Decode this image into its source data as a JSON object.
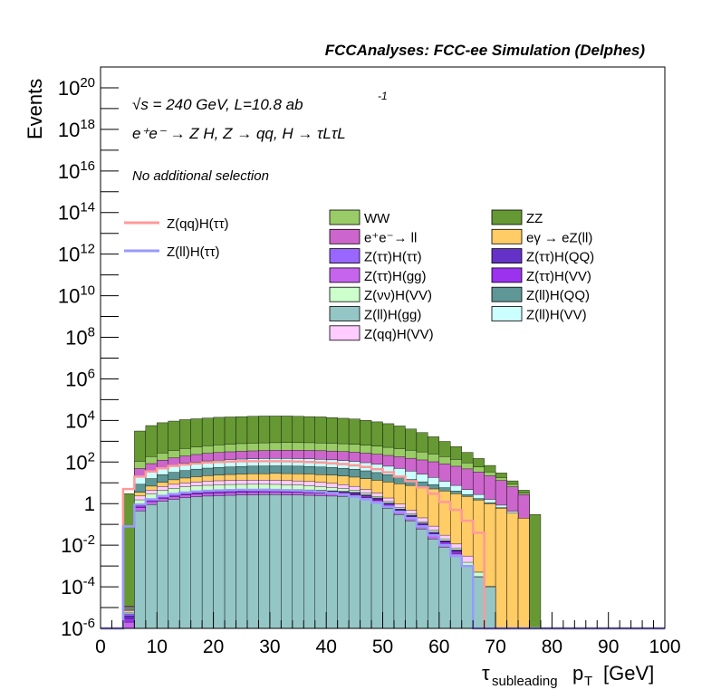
{
  "header": {
    "title": "FCCAnalyses: FCC-ee Simulation (Delphes)"
  },
  "annotations": {
    "energy": "√s = 240 GeV, L=10.8 ab",
    "energy_sup": "-1",
    "process": "e⁺e⁻ → Z H, Z → qq, H → τLτL",
    "selection": "No additional selection"
  },
  "chart_data": {
    "type": "area",
    "title": "FCCAnalyses: FCC-ee Simulation (Delphes)",
    "xlabel": "τsubleading pT [GeV]",
    "ylabel": "Events",
    "xlim": [
      0,
      100
    ],
    "ylim": [
      1e-06,
      1e+21
    ],
    "yscale": "log",
    "grid": false,
    "legend_placement": "top",
    "x_ticks": [
      "0",
      "10",
      "20",
      "30",
      "40",
      "50",
      "60",
      "70",
      "80",
      "90",
      "100"
    ],
    "y_ticks": [
      "10^-6",
      "10^-4",
      "10^-2",
      "1",
      "10^2",
      "10^4",
      "10^6",
      "10^8",
      "10^10",
      "10^12",
      "10^14",
      "10^16",
      "10^18",
      "10^20"
    ],
    "bin_width": 2,
    "stacked_backgrounds": [
      {
        "name": "Z(ll)H(gg)",
        "color": "#95c6c6",
        "values": [
          0,
          0,
          1e-06,
          0.45,
          0.9,
          1.3,
          1.6,
          1.9,
          2.1,
          2.3,
          2.4,
          2.5,
          2.6,
          2.6,
          2.7,
          2.7,
          2.6,
          2.6,
          2.5,
          2.4,
          2.3,
          2.2,
          2.0,
          1.5,
          1.1,
          0.6,
          0.3,
          0.15,
          0.06,
          0.02,
          0.008,
          0.003,
          0.001,
          0.0003,
          0.0001,
          0,
          0,
          0,
          0,
          0,
          0,
          0,
          0,
          0,
          0,
          0,
          0,
          0,
          0,
          0
        ]
      },
      {
        "name": "Z(ττ)H(gg)",
        "color": "#c664ee",
        "values": [
          0,
          0,
          1e-06,
          0.2,
          0.35,
          0.5,
          0.6,
          0.7,
          0.75,
          0.8,
          0.85,
          0.9,
          0.9,
          0.95,
          0.95,
          0.95,
          0.9,
          0.9,
          0.85,
          0.8,
          0.75,
          0.7,
          0.6,
          0.45,
          0.3,
          0.18,
          0.1,
          0.05,
          0.02,
          0.008,
          0.003,
          0.001,
          0,
          0,
          0,
          0,
          0,
          0,
          0,
          0,
          0,
          0,
          0,
          0,
          0,
          0,
          0,
          0,
          0,
          0
        ]
      },
      {
        "name": "Z(ττ)H(VV)",
        "color": "#9a32ee",
        "values": [
          0,
          0,
          1e-06,
          0.15,
          0.25,
          0.35,
          0.45,
          0.5,
          0.55,
          0.6,
          0.6,
          0.65,
          0.65,
          0.7,
          0.7,
          0.7,
          0.65,
          0.65,
          0.6,
          0.6,
          0.55,
          0.5,
          0.45,
          0.35,
          0.25,
          0.15,
          0.08,
          0.04,
          0.02,
          0.008,
          0.003,
          0.001,
          0,
          0,
          0,
          0,
          0,
          0,
          0,
          0,
          0,
          0,
          0,
          0,
          0,
          0,
          0,
          0,
          0,
          0
        ]
      },
      {
        "name": "Z(ττ)H(QQ)",
        "color": "#6532c8",
        "values": [
          0,
          0,
          1e-06,
          0.1,
          0.2,
          0.3,
          0.35,
          0.4,
          0.45,
          0.5,
          0.5,
          0.55,
          0.55,
          0.55,
          0.55,
          0.55,
          0.5,
          0.5,
          0.5,
          0.45,
          0.45,
          0.4,
          0.35,
          0.28,
          0.2,
          0.12,
          0.07,
          0.035,
          0.015,
          0.006,
          0.002,
          0.0008,
          0,
          0,
          0,
          0,
          0,
          0,
          0,
          0,
          0,
          0,
          0,
          0,
          0,
          0,
          0,
          0,
          0,
          0
        ]
      },
      {
        "name": "Z(ττ)H(ττ)",
        "color": "#9966ff",
        "values": [
          0,
          0,
          1e-06,
          0.02,
          0.04,
          0.06,
          0.08,
          0.09,
          0.1,
          0.1,
          0.11,
          0.11,
          0.12,
          0.12,
          0.12,
          0.11,
          0.11,
          0.1,
          0.1,
          0.09,
          0.08,
          0.07,
          0.06,
          0.04,
          0.02,
          0.01,
          0.005,
          0.002,
          0.001,
          0.0005,
          0.0002,
          0.0001,
          0,
          0,
          0,
          0,
          0,
          0,
          0,
          0,
          0,
          0,
          0,
          0,
          0,
          0,
          0,
          0,
          0,
          0
        ]
      },
      {
        "name": "Z(νν)H(VV)",
        "color": "#ccffcc",
        "values": [
          0,
          0,
          1e-06,
          0.6,
          1.2,
          1.8,
          2.4,
          2.8,
          3.1,
          3.3,
          3.5,
          3.6,
          3.6,
          3.6,
          3.5,
          3.4,
          3.2,
          3.0,
          2.7,
          2.3,
          1.9,
          1.4,
          1.0,
          0.6,
          0.35,
          0.2,
          0.1,
          0.05,
          0.02,
          0.01,
          0.004,
          0.0015,
          0.0005,
          0.0002,
          0,
          0,
          0,
          0,
          0,
          0,
          0,
          0,
          0,
          0,
          0,
          0,
          0,
          0,
          0,
          0
        ]
      },
      {
        "name": "Z(qq)H(VV)",
        "color": "#ffccff",
        "values": [
          0,
          0,
          1e-06,
          0.8,
          1.5,
          2.3,
          3.0,
          3.6,
          4.0,
          4.4,
          4.6,
          4.8,
          4.9,
          5.0,
          5.0,
          4.9,
          4.8,
          4.6,
          4.3,
          3.9,
          3.4,
          2.9,
          2.3,
          1.6,
          1.0,
          0.6,
          0.3,
          0.15,
          0.07,
          0.03,
          0.01,
          0.004,
          0.0015,
          0,
          0,
          0,
          0,
          0,
          0,
          0,
          0,
          0,
          0,
          0,
          0,
          0,
          0,
          0,
          0,
          0
        ]
      },
      {
        "name": "eγ → eZ(ll)",
        "color": "#ffcc66",
        "values": [
          0,
          0,
          1e-06,
          1.2,
          2.5,
          4.0,
          5.5,
          7.0,
          8.5,
          10,
          11,
          12,
          13,
          14,
          14,
          15,
          15,
          15,
          15,
          14,
          14,
          13,
          12,
          11,
          10,
          9,
          8,
          7,
          6,
          5,
          4,
          3,
          2.2,
          1.5,
          1.0,
          0.6,
          0.35,
          0.2,
          0,
          0,
          0,
          0,
          0,
          0,
          0,
          0,
          0,
          0,
          0,
          0
        ]
      },
      {
        "name": "Z(ll)H(QQ)",
        "color": "#5f9696",
        "values": [
          0,
          0,
          1e-06,
          5,
          9,
          14,
          18,
          22,
          26,
          29,
          31,
          33,
          35,
          36,
          37,
          37,
          37,
          36,
          35,
          33,
          31,
          29,
          26,
          22,
          18,
          14,
          10,
          7,
          5,
          3,
          1.8,
          1.0,
          0.5,
          0.25,
          0.1,
          0.04,
          0,
          0,
          0,
          0,
          0,
          0,
          0,
          0,
          0,
          0,
          0,
          0,
          0,
          0
        ]
      },
      {
        "name": "Z(ll)H(VV)",
        "color": "#ccffff",
        "values": [
          0,
          0,
          1e-06,
          10,
          18,
          28,
          38,
          47,
          55,
          62,
          68,
          73,
          77,
          80,
          82,
          83,
          83,
          82,
          80,
          77,
          73,
          68,
          62,
          55,
          47,
          38,
          30,
          22,
          15,
          10,
          6,
          3.5,
          2.0,
          1.0,
          0.5,
          0.2,
          0.08,
          0,
          0,
          0,
          0,
          0,
          0,
          0,
          0,
          0,
          0,
          0,
          0,
          0
        ]
      },
      {
        "name": "e⁺e⁻→ ll",
        "color": "#cc66cc",
        "values": [
          0,
          0,
          1e-06,
          30,
          50,
          70,
          90,
          110,
          130,
          150,
          165,
          180,
          190,
          200,
          210,
          215,
          220,
          220,
          220,
          215,
          210,
          200,
          190,
          175,
          160,
          145,
          130,
          115,
          100,
          85,
          70,
          55,
          42,
          30,
          20,
          12,
          6,
          2.5,
          0,
          0,
          0,
          0,
          0,
          0,
          0,
          0,
          0,
          0,
          0,
          0
        ]
      },
      {
        "name": "WW",
        "color": "#99cc66",
        "values": [
          0,
          0,
          1e-06,
          60,
          100,
          150,
          200,
          250,
          300,
          340,
          380,
          410,
          440,
          460,
          480,
          490,
          495,
          495,
          490,
          480,
          460,
          440,
          410,
          380,
          340,
          300,
          260,
          220,
          180,
          140,
          100,
          70,
          45,
          25,
          12,
          5,
          2,
          0.5,
          0,
          0,
          0,
          0,
          0,
          0,
          0,
          0,
          0,
          0,
          0,
          0
        ]
      },
      {
        "name": "ZZ",
        "color": "#669933",
        "values": [
          0,
          0,
          3,
          3000,
          5500,
          7500,
          9000,
          10500,
          11500,
          12500,
          13500,
          14000,
          14500,
          15000,
          15500,
          15500,
          15500,
          15000,
          14500,
          14000,
          13000,
          12000,
          11000,
          9500,
          8000,
          6500,
          5000,
          3500,
          2300,
          1400,
          800,
          420,
          200,
          90,
          35,
          12,
          4,
          1.2,
          0.3,
          0,
          0,
          0,
          0,
          0,
          0,
          0,
          0,
          0,
          0,
          0
        ]
      }
    ],
    "signal_lines": [
      {
        "name": "Z(qq)H(ττ)",
        "color": "#ff9999",
        "values": [
          0,
          0,
          5,
          20,
          35,
          50,
          65,
          75,
          85,
          95,
          100,
          105,
          110,
          110,
          110,
          110,
          108,
          105,
          100,
          95,
          88,
          80,
          70,
          58,
          45,
          32,
          20,
          12,
          6,
          3,
          1.2,
          0.5,
          0.15,
          0.04,
          0,
          0,
          0,
          0,
          0,
          0,
          0,
          0,
          0,
          0,
          0,
          0,
          0,
          0,
          0,
          0
        ]
      },
      {
        "name": "Z(ll)H(ττ)",
        "color": "#9999ff",
        "values": [
          0,
          0,
          0.08,
          0.9,
          1.6,
          2.3,
          2.9,
          3.4,
          3.8,
          4.1,
          4.3,
          4.5,
          4.6,
          4.6,
          4.6,
          4.5,
          4.4,
          4.2,
          4.0,
          3.7,
          3.3,
          2.8,
          2.2,
          1.6,
          1.1,
          0.7,
          0.4,
          0.2,
          0.08,
          0.03,
          0.01,
          0.003,
          0.001,
          0,
          0,
          0,
          0,
          0,
          0,
          0,
          0,
          0,
          0,
          0,
          0,
          0,
          0,
          0,
          0,
          0
        ]
      }
    ]
  },
  "legend": {
    "signals": [
      {
        "label": "Z(qq)H(ττ)",
        "color": "#ff9999"
      },
      {
        "label": "Z(ll)H(ττ)",
        "color": "#9999ff"
      }
    ],
    "backgrounds_col1": [
      {
        "label": "WW",
        "color": "#99cc66"
      },
      {
        "label": "e⁺e⁻→ ll",
        "color": "#cc66cc"
      },
      {
        "label": "Z(ττ)H(ττ)",
        "color": "#9966ff"
      },
      {
        "label": "Z(ττ)H(gg)",
        "color": "#c664ee"
      },
      {
        "label": "Z(νν)H(VV)",
        "color": "#ccffcc"
      },
      {
        "label": "Z(ll)H(gg)",
        "color": "#95c6c6"
      },
      {
        "label": "Z(qq)H(VV)",
        "color": "#ffccff"
      }
    ],
    "backgrounds_col2": [
      {
        "label": "ZZ",
        "color": "#669933"
      },
      {
        "label": "eγ → eZ(ll)",
        "color": "#ffcc66"
      },
      {
        "label": "Z(ττ)H(QQ)",
        "color": "#6532c8"
      },
      {
        "label": "Z(ττ)H(VV)",
        "color": "#9a32ee"
      },
      {
        "label": "Z(ll)H(QQ)",
        "color": "#5f9696"
      },
      {
        "label": "Z(ll)H(VV)",
        "color": "#ccffff"
      }
    ]
  }
}
